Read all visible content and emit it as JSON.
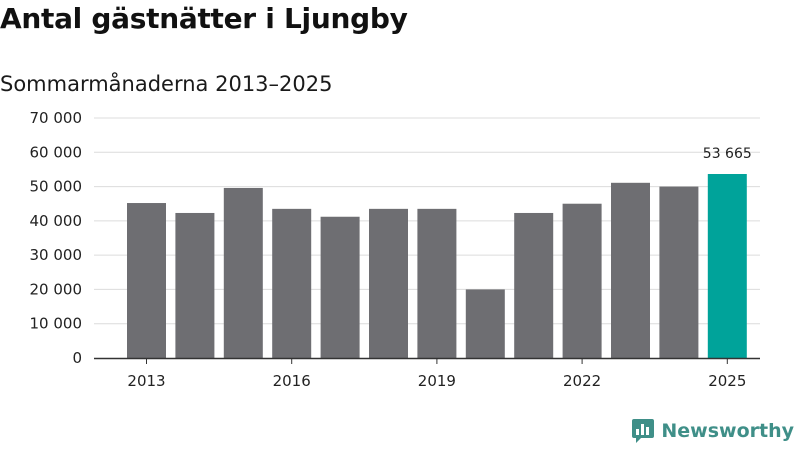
{
  "header": {
    "title": "Antal gästnätter i Ljungby",
    "subtitle": "Sommarmånaderna 2013–2025"
  },
  "brand": {
    "name": "Newsworthy",
    "icon": "newsworthy-logo-icon"
  },
  "colors": {
    "bar": "#6e6e72",
    "highlight": "#00a39a",
    "grid": "#dcdcdc",
    "axis": "#333333",
    "brand": "#3f8f88"
  },
  "chart_data": {
    "type": "bar",
    "title": "Antal gästnätter i Ljungby",
    "subtitle": "Sommarmånaderna 2013–2025",
    "categories": [
      "2013",
      "2014",
      "2015",
      "2016",
      "2017",
      "2018",
      "2019",
      "2020",
      "2021",
      "2022",
      "2023",
      "2024",
      "2025"
    ],
    "values": [
      45200,
      42300,
      49600,
      43500,
      41200,
      43500,
      43500,
      20000,
      42300,
      45000,
      51100,
      50000,
      53665
    ],
    "xtick_labels": [
      "2013",
      "",
      "",
      "2016",
      "",
      "",
      "2019",
      "",
      "",
      "2022",
      "",
      "",
      "2025"
    ],
    "ylim": [
      0,
      70000
    ],
    "yticks": [
      0,
      10000,
      20000,
      30000,
      40000,
      50000,
      60000,
      70000
    ],
    "ytick_labels": [
      "0",
      "10 000",
      "20 000",
      "30 000",
      "40 000",
      "50 000",
      "60 000",
      "70 000"
    ],
    "highlight_index": 12,
    "data_labels": [
      {
        "index": 12,
        "text": "53 665"
      }
    ],
    "grid": true,
    "xlabel": "",
    "ylabel": ""
  }
}
